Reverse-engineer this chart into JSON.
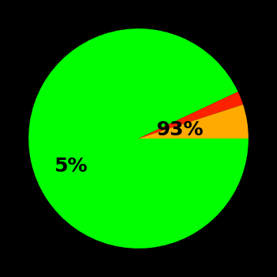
{
  "slices": [
    93,
    2,
    5
  ],
  "colors": [
    "#00ff00",
    "#ff2200",
    "#ffaa00"
  ],
  "labels": [
    "93%",
    "",
    "5%"
  ],
  "background_color": "#000000",
  "startangle": 0,
  "counterclock": false,
  "figsize": [
    3.5,
    3.5
  ],
  "dpi": 100,
  "label_fontsize": 18,
  "label_color": "#000000",
  "label_positions": {
    "0": [
      0.38,
      0.08
    ],
    "2": [
      -0.62,
      -0.25
    ]
  }
}
